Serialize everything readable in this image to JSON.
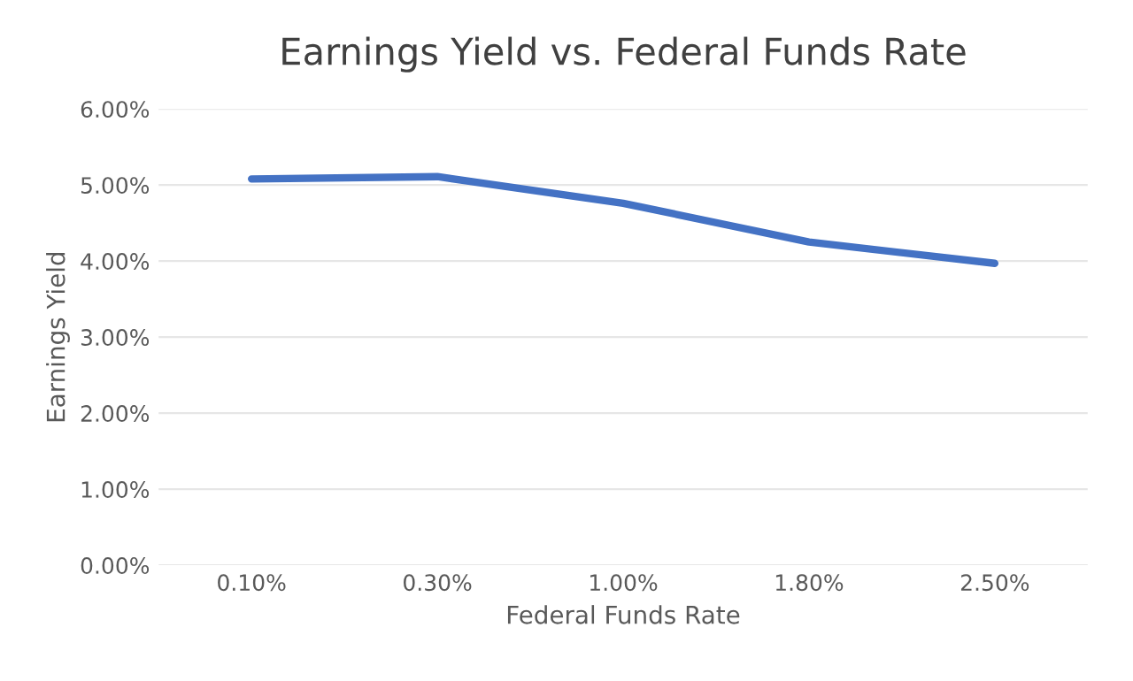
{
  "chart_data": {
    "type": "line",
    "title": "Earnings Yield vs. Federal Funds Rate",
    "xlabel": "Federal Funds Rate",
    "ylabel": "Earnings Yield",
    "categories": [
      "0.10%",
      "0.30%",
      "1.00%",
      "1.80%",
      "2.50%"
    ],
    "series": [
      {
        "color": "#4472c4",
        "values": [
          5.08,
          5.11,
          4.76,
          4.25,
          3.97
        ]
      }
    ],
    "ylim": [
      0,
      6
    ],
    "yticks": [
      {
        "value": 0,
        "label": "0.00%"
      },
      {
        "value": 1,
        "label": "1.00%"
      },
      {
        "value": 2,
        "label": "2.00%"
      },
      {
        "value": 3,
        "label": "3.00%"
      },
      {
        "value": 4,
        "label": "4.00%"
      },
      {
        "value": 5,
        "label": "5.00%"
      },
      {
        "value": 6,
        "label": "6.00%"
      }
    ],
    "grid": "y",
    "marker": "none",
    "line_style": "solid",
    "legend": false
  }
}
